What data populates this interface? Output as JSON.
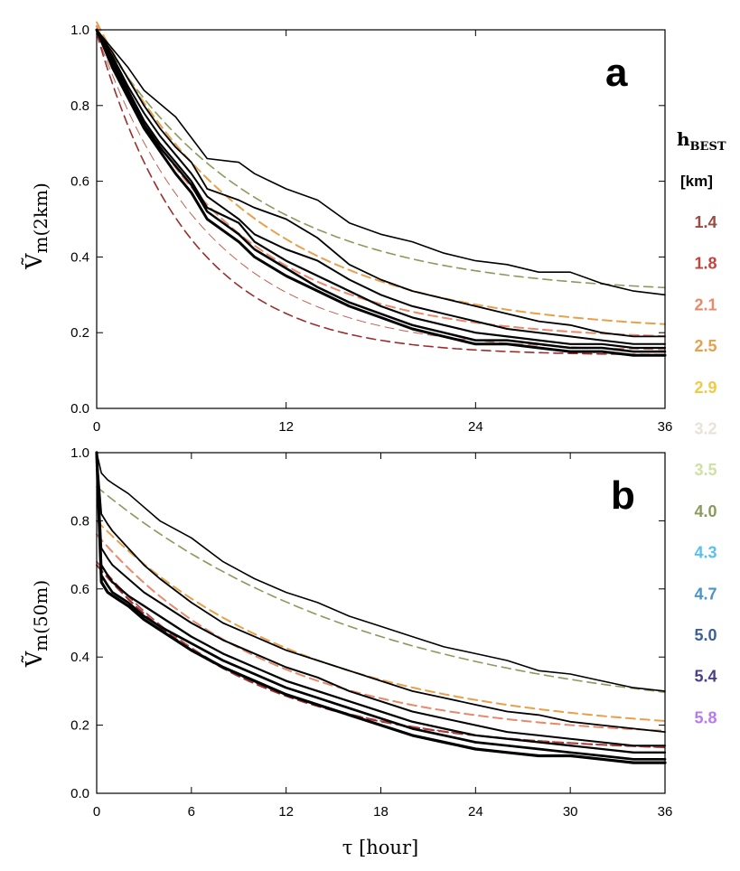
{
  "chart_data": [
    {
      "type": "line",
      "panel": "a",
      "ylabel_main": "Ṽ",
      "ylabel_sub": "m(2km)",
      "xlabel": "",
      "xlim": [
        0,
        36
      ],
      "ylim": [
        0,
        1
      ],
      "xticks": [
        0,
        12,
        24,
        36
      ],
      "yticks": [
        "0.0",
        "0.2",
        "0.4",
        "0.6",
        "0.8",
        "1.0"
      ],
      "series": [
        {
          "style": "solid",
          "weight": 1.6,
          "x": [
            0,
            1,
            2,
            3,
            5,
            7,
            9,
            10,
            11,
            12,
            14,
            16,
            18,
            20,
            22,
            24,
            26,
            28,
            30,
            32,
            34,
            36
          ],
          "y": [
            1.0,
            0.95,
            0.9,
            0.84,
            0.77,
            0.66,
            0.65,
            0.62,
            0.6,
            0.58,
            0.55,
            0.49,
            0.46,
            0.44,
            0.41,
            0.39,
            0.38,
            0.36,
            0.36,
            0.33,
            0.31,
            0.3
          ]
        },
        {
          "style": "solid",
          "weight": 1.8,
          "x": [
            0,
            1,
            2,
            3,
            4,
            5,
            6,
            7,
            9,
            10,
            12,
            14,
            16,
            18,
            20,
            22,
            24,
            26,
            28,
            30,
            32,
            34,
            36
          ],
          "y": [
            1.0,
            0.94,
            0.87,
            0.8,
            0.74,
            0.69,
            0.65,
            0.58,
            0.55,
            0.53,
            0.5,
            0.45,
            0.38,
            0.34,
            0.31,
            0.29,
            0.27,
            0.25,
            0.23,
            0.22,
            0.2,
            0.19,
            0.19
          ]
        },
        {
          "style": "solid",
          "weight": 2.0,
          "x": [
            0,
            1,
            2,
            3,
            4,
            5,
            6,
            7,
            9,
            10,
            12,
            14,
            16,
            18,
            20,
            22,
            24,
            26,
            28,
            30,
            32,
            34,
            36
          ],
          "y": [
            1.0,
            0.93,
            0.85,
            0.78,
            0.72,
            0.67,
            0.62,
            0.56,
            0.5,
            0.46,
            0.42,
            0.39,
            0.34,
            0.3,
            0.27,
            0.25,
            0.23,
            0.21,
            0.2,
            0.19,
            0.18,
            0.17,
            0.17
          ]
        },
        {
          "style": "solid",
          "weight": 2.2,
          "x": [
            0,
            1,
            2,
            3,
            4,
            5,
            6,
            7,
            9,
            10,
            12,
            14,
            16,
            18,
            20,
            22,
            24,
            26,
            28,
            30,
            32,
            34,
            36
          ],
          "y": [
            1.0,
            0.92,
            0.84,
            0.76,
            0.7,
            0.65,
            0.6,
            0.53,
            0.49,
            0.44,
            0.39,
            0.35,
            0.31,
            0.27,
            0.24,
            0.22,
            0.2,
            0.19,
            0.18,
            0.17,
            0.17,
            0.16,
            0.16
          ]
        },
        {
          "style": "solid",
          "weight": 2.5,
          "x": [
            0,
            1,
            2,
            3,
            4,
            5,
            6,
            7,
            9,
            10,
            12,
            14,
            16,
            18,
            20,
            22,
            24,
            26,
            28,
            30,
            32,
            34,
            36
          ],
          "y": [
            1.0,
            0.91,
            0.83,
            0.75,
            0.69,
            0.64,
            0.59,
            0.52,
            0.46,
            0.42,
            0.37,
            0.32,
            0.28,
            0.25,
            0.22,
            0.2,
            0.18,
            0.18,
            0.17,
            0.16,
            0.16,
            0.15,
            0.15
          ]
        },
        {
          "style": "solid",
          "weight": 3.0,
          "x": [
            0,
            1,
            2,
            3,
            4,
            5,
            6,
            7,
            9,
            10,
            12,
            14,
            16,
            18,
            20,
            22,
            24,
            26,
            28,
            30,
            32,
            34,
            36
          ],
          "y": [
            1.0,
            0.9,
            0.82,
            0.74,
            0.68,
            0.62,
            0.57,
            0.5,
            0.44,
            0.4,
            0.35,
            0.31,
            0.27,
            0.24,
            0.21,
            0.19,
            0.17,
            0.17,
            0.16,
            0.15,
            0.15,
            0.14,
            0.14
          ]
        },
        {
          "style": "dashed",
          "color": "#8a9a5b",
          "weight": 1.6,
          "model": "exp",
          "a": 0.7,
          "k": 0.1,
          "c": 0.3
        },
        {
          "style": "dashed",
          "color": "#e8a04a",
          "weight": 2.0,
          "model": "exp",
          "a": 0.82,
          "k": 0.1,
          "c": 0.2
        },
        {
          "style": "dashed",
          "color": "#e8896a",
          "weight": 2.0,
          "model": "exp",
          "a": 0.83,
          "k": 0.12,
          "c": 0.18
        },
        {
          "style": "dashed",
          "color": "#c06050",
          "weight": 1.0,
          "model": "exp",
          "a": 0.84,
          "k": 0.14,
          "c": 0.15
        },
        {
          "style": "dashed",
          "color": "#9b2d2d",
          "weight": 1.6,
          "model": "exp",
          "a": 0.85,
          "k": 0.17,
          "c": 0.14
        }
      ]
    },
    {
      "type": "line",
      "panel": "b",
      "ylabel_main": "Ṽ",
      "ylabel_sub": "m(50m)",
      "xlabel": "τ [hour]",
      "xlim": [
        0,
        36
      ],
      "ylim": [
        0,
        1
      ],
      "xticks": [
        0,
        6,
        12,
        18,
        24,
        30,
        36
      ],
      "yticks": [
        "0.0",
        "0.2",
        "0.4",
        "0.6",
        "0.8",
        "1.0"
      ],
      "series": [
        {
          "style": "solid",
          "weight": 1.6,
          "x": [
            0,
            0.3,
            0.7,
            1,
            2,
            3,
            4,
            6,
            8,
            10,
            12,
            14,
            16,
            18,
            20,
            22,
            24,
            26,
            28,
            30,
            32,
            34,
            36
          ],
          "y": [
            1.0,
            0.94,
            0.92,
            0.91,
            0.88,
            0.84,
            0.8,
            0.75,
            0.68,
            0.63,
            0.59,
            0.56,
            0.52,
            0.49,
            0.46,
            0.43,
            0.41,
            0.39,
            0.36,
            0.35,
            0.33,
            0.31,
            0.3
          ]
        },
        {
          "style": "solid",
          "weight": 1.8,
          "x": [
            0,
            0.3,
            0.7,
            1,
            2,
            3,
            4,
            6,
            8,
            10,
            12,
            14,
            16,
            18,
            20,
            22,
            24,
            26,
            28,
            30,
            32,
            34,
            36
          ],
          "y": [
            1.0,
            0.82,
            0.79,
            0.77,
            0.72,
            0.67,
            0.63,
            0.56,
            0.5,
            0.46,
            0.42,
            0.39,
            0.36,
            0.33,
            0.3,
            0.28,
            0.26,
            0.24,
            0.23,
            0.21,
            0.2,
            0.19,
            0.18
          ]
        },
        {
          "style": "solid",
          "weight": 2.0,
          "x": [
            0,
            0.3,
            0.7,
            1,
            2,
            3,
            4,
            6,
            8,
            10,
            12,
            14,
            16,
            18,
            20,
            22,
            24,
            26,
            28,
            30,
            32,
            34,
            36
          ],
          "y": [
            1.0,
            0.72,
            0.69,
            0.67,
            0.63,
            0.59,
            0.56,
            0.5,
            0.45,
            0.41,
            0.37,
            0.34,
            0.3,
            0.27,
            0.24,
            0.22,
            0.2,
            0.18,
            0.17,
            0.16,
            0.15,
            0.14,
            0.14
          ]
        },
        {
          "style": "solid",
          "weight": 2.3,
          "x": [
            0,
            0.3,
            0.7,
            1,
            2,
            3,
            4,
            6,
            8,
            10,
            12,
            14,
            16,
            18,
            20,
            22,
            24,
            26,
            28,
            30,
            32,
            34,
            36
          ],
          "y": [
            1.0,
            0.67,
            0.64,
            0.62,
            0.58,
            0.55,
            0.52,
            0.46,
            0.41,
            0.37,
            0.33,
            0.3,
            0.27,
            0.24,
            0.21,
            0.19,
            0.17,
            0.16,
            0.15,
            0.14,
            0.13,
            0.12,
            0.12
          ]
        },
        {
          "style": "solid",
          "weight": 2.7,
          "x": [
            0,
            0.3,
            0.7,
            1,
            2,
            3,
            4,
            6,
            8,
            10,
            12,
            14,
            16,
            18,
            20,
            22,
            24,
            26,
            28,
            30,
            32,
            34,
            36
          ],
          "y": [
            1.0,
            0.64,
            0.61,
            0.59,
            0.56,
            0.52,
            0.49,
            0.44,
            0.39,
            0.35,
            0.31,
            0.28,
            0.25,
            0.22,
            0.19,
            0.17,
            0.15,
            0.14,
            0.13,
            0.12,
            0.11,
            0.1,
            0.1
          ]
        },
        {
          "style": "solid",
          "weight": 3.2,
          "x": [
            0,
            0.3,
            0.7,
            1,
            2,
            3,
            4,
            6,
            8,
            10,
            12,
            14,
            16,
            18,
            20,
            22,
            24,
            26,
            28,
            30,
            32,
            34,
            36
          ],
          "y": [
            1.0,
            0.62,
            0.59,
            0.58,
            0.55,
            0.51,
            0.48,
            0.42,
            0.37,
            0.33,
            0.29,
            0.26,
            0.23,
            0.2,
            0.17,
            0.15,
            0.13,
            0.12,
            0.11,
            0.11,
            0.1,
            0.09,
            0.09
          ]
        },
        {
          "style": "dashed",
          "color": "#8a9a5b",
          "weight": 1.6,
          "model": "exp",
          "a": 0.7,
          "k": 0.055,
          "c": 0.2
        },
        {
          "style": "dashed",
          "color": "#e8a04a",
          "weight": 2.0,
          "model": "exp",
          "a": 0.63,
          "k": 0.075,
          "c": 0.17
        },
        {
          "style": "dashed",
          "color": "#e8896a",
          "weight": 2.0,
          "model": "exp",
          "a": 0.6,
          "k": 0.09,
          "c": 0.16
        },
        {
          "style": "dashed",
          "color": "#9b2d2d",
          "weight": 2.0,
          "model": "exp",
          "a": 0.55,
          "k": 0.1,
          "c": 0.12
        },
        {
          "style": "dashed",
          "color": "#b04040",
          "weight": 1.6,
          "model": "exp",
          "a": 0.56,
          "k": 0.1,
          "c": 0.12
        }
      ]
    }
  ],
  "legend": {
    "title_main": "h",
    "title_sub": "BEST",
    "unit": "[km]",
    "entries": [
      {
        "label": "1.4",
        "color": "#9b4a44"
      },
      {
        "label": "1.8",
        "color": "#c0453d"
      },
      {
        "label": "2.1",
        "color": "#e8896a"
      },
      {
        "label": "2.5",
        "color": "#e8a04a"
      },
      {
        "label": "2.9",
        "color": "#eecb45"
      },
      {
        "label": "3.2",
        "color": "#e9e3d7"
      },
      {
        "label": "3.5",
        "color": "#cfe0a4"
      },
      {
        "label": "4.0",
        "color": "#8a9a5b"
      },
      {
        "label": "4.3",
        "color": "#5bc0ee"
      },
      {
        "label": "4.7",
        "color": "#4a95c4"
      },
      {
        "label": "5.0",
        "color": "#3b5f99"
      },
      {
        "label": "5.4",
        "color": "#4b3e8a"
      },
      {
        "label": "5.8",
        "color": "#b67af0"
      }
    ]
  }
}
